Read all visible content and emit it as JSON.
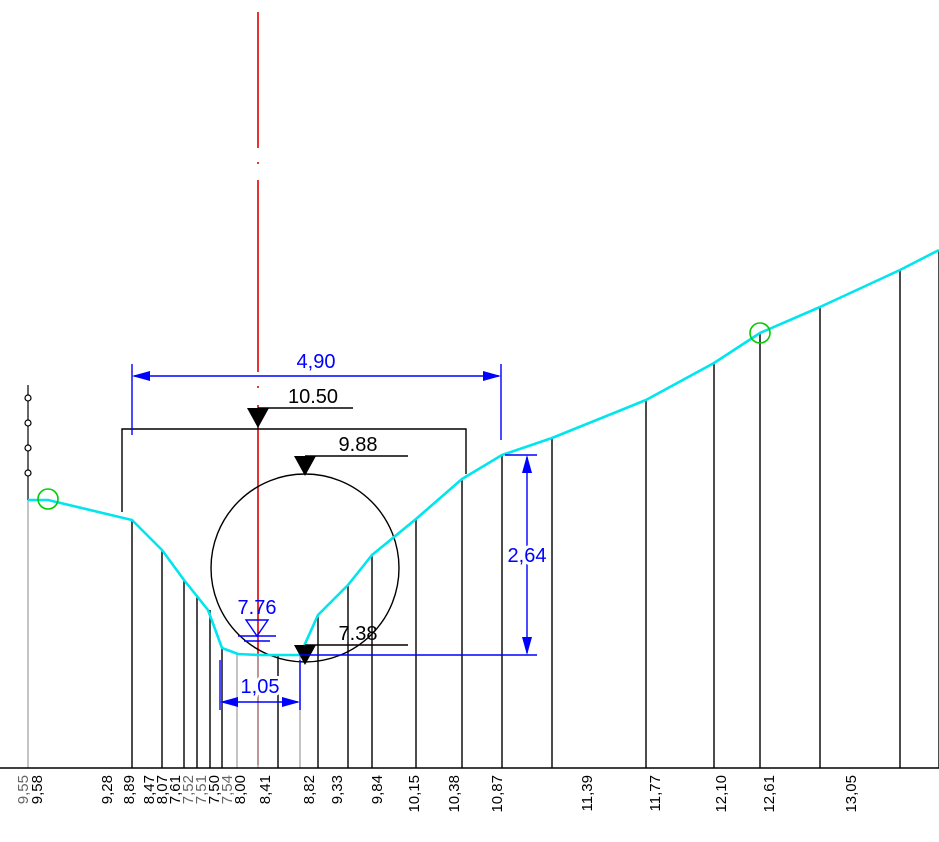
{
  "colors": {
    "terrain": "#00e5ee",
    "dimension": "#0000ff",
    "axis": "#e00000",
    "structure": "#000000",
    "marker": "#00cc00",
    "light_station": "#aaaaaa"
  },
  "dimensions": {
    "width_label": "4,90",
    "height_label": "2,64",
    "water_width_label": "1,05"
  },
  "levels": {
    "top": "10.50",
    "crown": "9.88",
    "invert": "7.38",
    "water": "7.76"
  },
  "stations": [
    {
      "label": "9,55",
      "gray": true
    },
    {
      "label": "9,58",
      "gray": false
    },
    {
      "label": "9,28",
      "gray": false
    },
    {
      "label": "8,89",
      "gray": false
    },
    {
      "label": "8,47",
      "gray": false
    },
    {
      "label": "8,07",
      "gray": false
    },
    {
      "label": "7,61",
      "gray": false
    },
    {
      "label": "7,52",
      "gray": true
    },
    {
      "label": "7,51",
      "gray": true
    },
    {
      "label": "7,50",
      "gray": false
    },
    {
      "label": "7,54",
      "gray": true
    },
    {
      "label": "8,00",
      "gray": false
    },
    {
      "label": "8,41",
      "gray": false
    },
    {
      "label": "8,82",
      "gray": false
    },
    {
      "label": "9,33",
      "gray": false
    },
    {
      "label": "9,84",
      "gray": false
    },
    {
      "label": "10,15",
      "gray": false
    },
    {
      "label": "10,38",
      "gray": false
    },
    {
      "label": "10,87",
      "gray": false
    },
    {
      "label": "11,39",
      "gray": false
    },
    {
      "label": "11,77",
      "gray": false
    },
    {
      "label": "12,10",
      "gray": false
    },
    {
      "label": "12,61",
      "gray": false
    },
    {
      "label": "13,05",
      "gray": false
    }
  ]
}
